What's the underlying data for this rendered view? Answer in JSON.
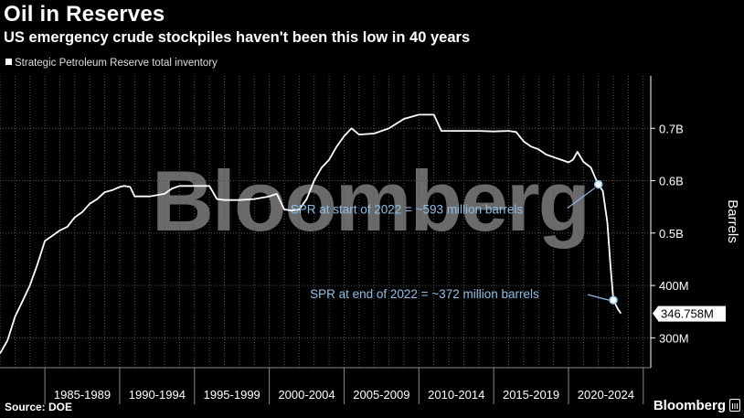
{
  "header": {
    "title": "Oil in Reserves",
    "subtitle": "US emergency crude stockpiles haven't been this low in 40 years"
  },
  "footer": {
    "source": "Source: DOE",
    "brand": "Bloomberg"
  },
  "watermark": "Bloomberg",
  "colors": {
    "background": "#000000",
    "line": "#ffffff",
    "annotation": "#8fbfe8",
    "grid": "#555555",
    "watermark": "#6a6a6a"
  },
  "chart_data": {
    "type": "line",
    "title": "Oil in Reserves",
    "subtitle": "US emergency crude stockpiles haven't been this low in 40 years",
    "ylabel": "Barrels",
    "ylim": [
      243,
      800
    ],
    "xlim": [
      1982.0,
      2025.5
    ],
    "x_axis_type": "year",
    "grid": true,
    "legend": "top-left",
    "y_ticks": [
      {
        "value": 300,
        "label": "300M"
      },
      {
        "value": 400,
        "label": "400M"
      },
      {
        "value": 500,
        "label": "0.5B"
      },
      {
        "value": 600,
        "label": "0.6B"
      },
      {
        "value": 700,
        "label": "0.7B"
      }
    ],
    "x_categories": [
      "1985-1989",
      "1990-1994",
      "1995-1999",
      "2000-2004",
      "2005-2009",
      "2010-2014",
      "2015-2019",
      "2020-2024"
    ],
    "x_category_bounds": [
      1985,
      1990,
      1995,
      2000,
      2005,
      2010,
      2015,
      2020,
      2025
    ],
    "series": [
      {
        "name": "Strategic Petroleum Reserve total inventory",
        "unit": "million barrels",
        "points": [
          [
            1982.0,
            270
          ],
          [
            1982.5,
            295
          ],
          [
            1983.0,
            340
          ],
          [
            1983.5,
            370
          ],
          [
            1984.0,
            400
          ],
          [
            1984.5,
            440
          ],
          [
            1985.0,
            485
          ],
          [
            1985.5,
            495
          ],
          [
            1986.0,
            505
          ],
          [
            1986.5,
            512
          ],
          [
            1987.0,
            530
          ],
          [
            1987.5,
            540
          ],
          [
            1988.0,
            556
          ],
          [
            1988.5,
            565
          ],
          [
            1989.0,
            578
          ],
          [
            1989.5,
            582
          ],
          [
            1990.0,
            588
          ],
          [
            1990.3,
            590
          ],
          [
            1990.7,
            588
          ],
          [
            1991.0,
            570
          ],
          [
            1992.0,
            570
          ],
          [
            1993.0,
            575
          ],
          [
            1993.5,
            585
          ],
          [
            1994.0,
            590
          ],
          [
            1996.0,
            590
          ],
          [
            1996.5,
            565
          ],
          [
            1997.0,
            563
          ],
          [
            1998.0,
            563
          ],
          [
            1999.0,
            565
          ],
          [
            2000.0,
            570
          ],
          [
            2000.5,
            575
          ],
          [
            2001.0,
            545
          ],
          [
            2001.5,
            543
          ],
          [
            2002.0,
            545
          ],
          [
            2002.5,
            565
          ],
          [
            2003.0,
            600
          ],
          [
            2003.5,
            625
          ],
          [
            2004.0,
            640
          ],
          [
            2004.5,
            665
          ],
          [
            2005.0,
            685
          ],
          [
            2005.5,
            700
          ],
          [
            2006.0,
            688
          ],
          [
            2007.0,
            690
          ],
          [
            2008.0,
            700
          ],
          [
            2009.0,
            718
          ],
          [
            2010.0,
            726
          ],
          [
            2011.0,
            726
          ],
          [
            2011.5,
            695
          ],
          [
            2012.0,
            695
          ],
          [
            2013.0,
            695
          ],
          [
            2014.0,
            695
          ],
          [
            2015.0,
            694
          ],
          [
            2016.0,
            695
          ],
          [
            2016.5,
            693
          ],
          [
            2017.0,
            675
          ],
          [
            2017.5,
            665
          ],
          [
            2018.0,
            660
          ],
          [
            2018.5,
            650
          ],
          [
            2019.0,
            645
          ],
          [
            2019.5,
            640
          ],
          [
            2020.0,
            635
          ],
          [
            2020.3,
            640
          ],
          [
            2020.6,
            655
          ],
          [
            2021.0,
            636
          ],
          [
            2021.5,
            625
          ],
          [
            2021.8,
            605
          ],
          [
            2022.0,
            593
          ],
          [
            2022.3,
            580
          ],
          [
            2022.6,
            520
          ],
          [
            2022.8,
            440
          ],
          [
            2023.0,
            372
          ],
          [
            2023.3,
            355
          ],
          [
            2023.5,
            346.758
          ]
        ]
      }
    ],
    "last_value_label": "346.758M",
    "annotations": [
      {
        "text": "SPR at start of 2022 = ~593 million barrels",
        "x": 2022.0,
        "y": 593
      },
      {
        "text": "SPR at end of 2022 = ~372 million barrels",
        "x": 2023.0,
        "y": 372
      }
    ]
  }
}
